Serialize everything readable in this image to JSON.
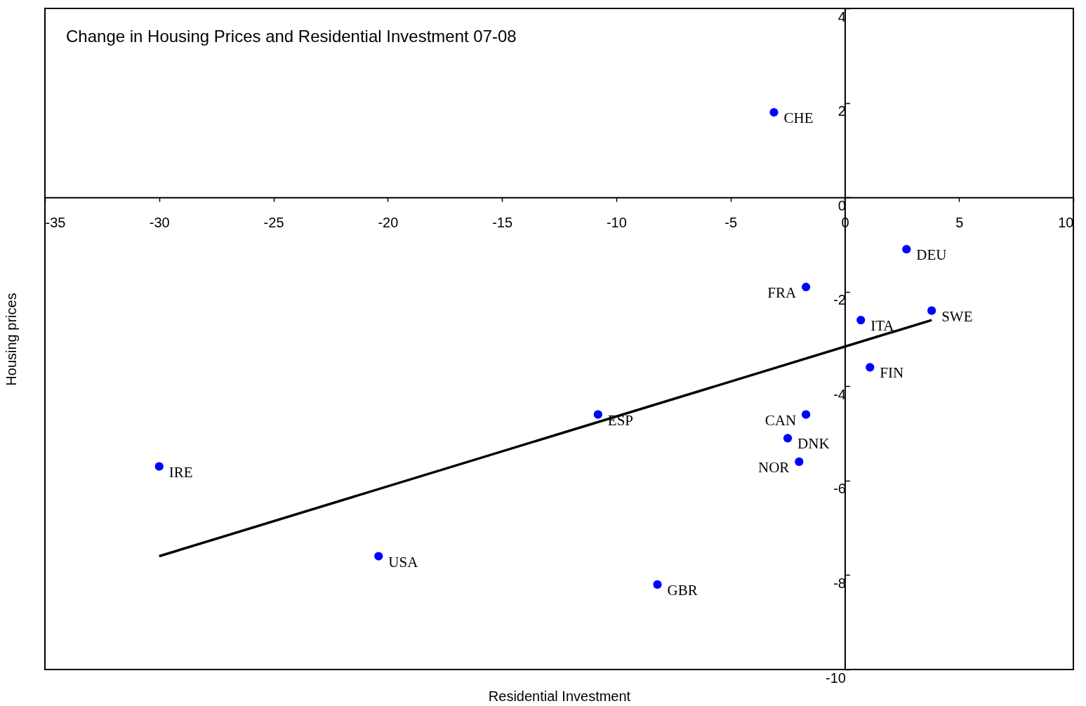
{
  "chart_data": {
    "type": "scatter",
    "title": "Change in Housing Prices and Residential Investment 07-08",
    "xlabel": "Residential Investment",
    "ylabel": "Housing prices",
    "xlim": [
      -35,
      10
    ],
    "ylim": [
      -10,
      4
    ],
    "xticks": [
      -35,
      -30,
      -25,
      -20,
      -15,
      -10,
      -5,
      0,
      5,
      10
    ],
    "yticks": [
      -10,
      -8,
      -6,
      -4,
      -2,
      0,
      2,
      4
    ],
    "grid": false,
    "legend": false,
    "marker": "circle",
    "series": [
      {
        "color": "#0000ff",
        "x": [
          -3.1,
          2.7,
          -1.7,
          3.8,
          0.7,
          1.1,
          -1.7,
          -10.8,
          -2.5,
          -2.0,
          -30.0,
          -20.4,
          -8.2
        ],
        "values": [
          1.8,
          -1.1,
          -1.9,
          -2.4,
          -2.6,
          -3.6,
          -4.6,
          -4.6,
          -5.1,
          -5.6,
          -5.7,
          -7.6,
          -8.2
        ]
      },
      {
        "type": "line",
        "marker": "none",
        "color": "#000000",
        "x": [
          -30.0,
          3.8
        ],
        "values": [
          -7.6,
          -2.6
        ]
      }
    ],
    "annotations": [
      {
        "text": "CHE",
        "x": -3.1,
        "y": 1.8
      },
      {
        "text": "DEU",
        "x": 2.7,
        "y": -1.1
      },
      {
        "text": "FRA",
        "x": -1.7,
        "y": -1.9
      },
      {
        "text": "SWE",
        "x": 3.8,
        "y": -2.4
      },
      {
        "text": "ITA",
        "x": 0.7,
        "y": -2.6
      },
      {
        "text": "FIN",
        "x": 1.1,
        "y": -3.6
      },
      {
        "text": "CAN",
        "x": -1.7,
        "y": -4.6
      },
      {
        "text": "ESP",
        "x": -10.8,
        "y": -4.6
      },
      {
        "text": "DNK",
        "x": -2.5,
        "y": -5.1
      },
      {
        "text": "NOR",
        "x": -2.0,
        "y": -5.6
      },
      {
        "text": "IRE",
        "x": -30.0,
        "y": -5.7
      },
      {
        "text": "USA",
        "x": -20.4,
        "y": -7.6
      },
      {
        "text": "GBR",
        "x": -8.2,
        "y": -8.2
      }
    ]
  }
}
